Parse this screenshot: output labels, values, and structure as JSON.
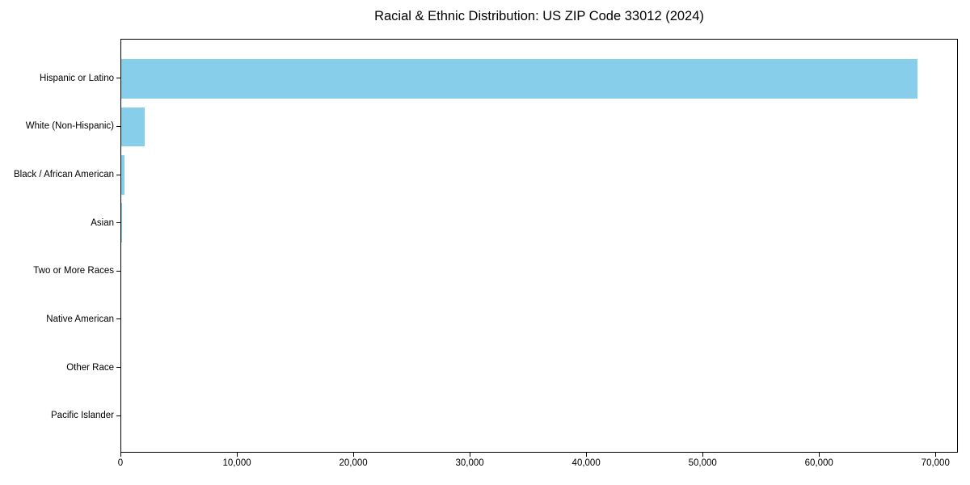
{
  "figure": {
    "background": "#ffffff"
  },
  "chart_data": {
    "type": "bar",
    "orientation": "horizontal",
    "title": "Racial & Ethnic Distribution: US ZIP Code 33012 (2024)",
    "categories": [
      "Hispanic or Latino",
      "White (Non-Hispanic)",
      "Black / African American",
      "Asian",
      "Two or More Races",
      "Native American",
      "Other Race",
      "Pacific Islander"
    ],
    "values": [
      68500,
      2000,
      300,
      100,
      0,
      0,
      0,
      0
    ],
    "xlabel": "",
    "ylabel": "",
    "xlim": [
      0,
      71925
    ],
    "x_ticks": [
      0,
      10000,
      20000,
      30000,
      40000,
      50000,
      60000,
      70000
    ],
    "x_tick_labels": [
      "0",
      "10,000",
      "20,000",
      "30,000",
      "40,000",
      "50,000",
      "60,000",
      "70,000"
    ],
    "bar_color": "#87CEEB",
    "axis_color": "#000000",
    "grid": false,
    "legend": false
  }
}
